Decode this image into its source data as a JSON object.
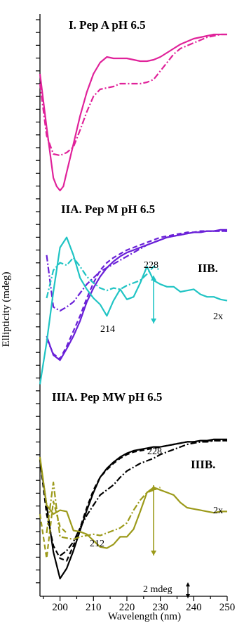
{
  "chart_data": {
    "type": "line",
    "xlabel": "Wavelength (nm)",
    "ylabel": "Ellipticity (mdeg)",
    "xlim": [
      194,
      250
    ],
    "x_ticks": [
      200,
      210,
      220,
      230,
      240,
      250
    ],
    "scale_bar_label": "2 mdeg",
    "legend": "none",
    "grid": false,
    "colors": {
      "magenta": "#e0229a",
      "purple": "#6a20d8",
      "cyan": "#20c4c4",
      "black": "#000000",
      "olive": "#9c9a1a"
    },
    "panels": [
      {
        "title": "I. Pep A pH 6.5",
        "series": [
          {
            "style": "solid",
            "color": "#e0229a",
            "x": [
              194,
              196,
              198,
              199,
              200,
              201,
              202,
              204,
              206,
              208,
              210,
              212,
              214,
              216,
              218,
              220,
              222,
              224,
              226,
              228,
              230,
              232,
              234,
              236,
              238,
              240,
              242,
              244,
              246,
              248,
              250
            ],
            "y": [
              0.4,
              -3.4,
              -7.0,
              -7.6,
              -7.9,
              -7.6,
              -6.6,
              -4.6,
              -2.6,
              -0.9,
              0.4,
              1.2,
              1.6,
              1.5,
              1.5,
              1.5,
              1.4,
              1.3,
              1.3,
              1.4,
              1.6,
              1.9,
              2.2,
              2.5,
              2.7,
              2.9,
              3.0,
              3.1,
              3.2,
              3.2,
              3.2
            ]
          },
          {
            "style": "dashdot",
            "color": "#e0229a",
            "x": [
              194,
              196,
              198,
              200,
              202,
              204,
              206,
              208,
              210,
              212,
              214,
              216,
              218,
              220,
              222,
              224,
              226,
              228,
              230,
              232,
              234,
              236,
              238,
              240,
              242,
              244,
              246,
              248,
              250
            ],
            "y": [
              -0.3,
              -4.0,
              -5.3,
              -5.4,
              -5.2,
              -4.8,
              -3.6,
              -2.3,
              -1.2,
              -0.7,
              -0.6,
              -0.5,
              -0.3,
              -0.3,
              -0.3,
              -0.3,
              -0.2,
              0.0,
              0.6,
              1.2,
              1.8,
              2.2,
              2.4,
              2.6,
              2.8,
              3.0,
              3.1,
              3.2,
              3.2
            ]
          }
        ]
      },
      {
        "title": "IIA. Pep M pH 6.5",
        "side_label": "IIB.",
        "series": [
          {
            "style": "solid",
            "color": "#6a20d8",
            "x": [
              196,
              198,
              200,
              202,
              204,
              206,
              208,
              210,
              212,
              214,
              216,
              218,
              220,
              222,
              224,
              226,
              228,
              230,
              232,
              234,
              236,
              238,
              240,
              242,
              244,
              246,
              248,
              250
            ],
            "y": [
              -5.0,
              -6.5,
              -6.9,
              -6.0,
              -5.0,
              -3.8,
              -2.3,
              -1.2,
              -0.3,
              0.4,
              0.9,
              1.3,
              1.6,
              1.8,
              2.0,
              2.2,
              2.4,
              2.6,
              2.8,
              2.9,
              3.0,
              3.1,
              3.2,
              3.2,
              3.3,
              3.3,
              3.4,
              3.4
            ]
          },
          {
            "style": "dashed",
            "color": "#6a20d8",
            "x": [
              196,
              198,
              200,
              202,
              204,
              206,
              208,
              210,
              212,
              214,
              216,
              218,
              220,
              222,
              224,
              226,
              228,
              230,
              232,
              234,
              236,
              238,
              240,
              242,
              244,
              246,
              248,
              250
            ],
            "y": [
              -5.2,
              -6.4,
              -6.8,
              -5.8,
              -4.6,
              -3.4,
              -2.0,
              -0.8,
              0.2,
              0.8,
              1.2,
              1.5,
              1.8,
              2.0,
              2.2,
              2.4,
              2.6,
              2.8,
              2.9,
              3.0,
              3.1,
              3.2,
              3.2,
              3.3,
              3.3,
              3.3,
              3.3,
              3.3
            ]
          },
          {
            "style": "dashdot",
            "color": "#6a20d8",
            "x": [
              196,
              198,
              200,
              202,
              204,
              206,
              208,
              210,
              212,
              214,
              216,
              218,
              220,
              222,
              224,
              226,
              228,
              230,
              232,
              234,
              236,
              238,
              240,
              242,
              244,
              246,
              248,
              250
            ],
            "y": [
              1.4,
              -2.7,
              -3.0,
              -2.7,
              -2.3,
              -1.6,
              -0.9,
              -0.4,
              0.1,
              0.4,
              0.7,
              1.0,
              1.3,
              1.6,
              1.9,
              2.2,
              2.4,
              2.6,
              2.8,
              2.9,
              3.0,
              3.1,
              3.2,
              3.2,
              3.3,
              3.3,
              3.3,
              3.3
            ]
          },
          {
            "style": "solid",
            "color": "#20c4c4",
            "x": [
              194,
              196,
              198,
              200,
              202,
              204,
              206,
              208,
              210,
              212,
              214,
              216,
              218,
              220,
              222,
              224,
              226,
              228,
              230,
              232,
              234,
              236,
              238,
              240,
              242,
              244,
              246,
              248,
              250
            ],
            "y": [
              -8.8,
              -5.5,
              -1.5,
              2.0,
              2.8,
              1.4,
              -0.4,
              -1.3,
              -2.0,
              -2.5,
              -3.4,
              -2.2,
              -1.3,
              -2.1,
              -1.9,
              -0.8,
              0.5,
              -0.6,
              -0.9,
              -1.1,
              -1.1,
              -1.5,
              -1.4,
              -1.3,
              -1.7,
              -1.9,
              -1.9,
              -2.1,
              -2.2
            ]
          },
          {
            "style": "dashdot",
            "color": "#20c4c4",
            "x": [
              196,
              198,
              200,
              202,
              204,
              206,
              208,
              210,
              212,
              214,
              216,
              218,
              220,
              222,
              224,
              226,
              228,
              230
            ],
            "y": [
              -2.0,
              0.2,
              0.8,
              0.6,
              1.2,
              0.5,
              -0.3,
              -0.8,
              -1.2,
              -1.4,
              -1.2,
              -1.3,
              -1.0,
              -0.8,
              -0.6,
              -0.1,
              0.5,
              0.2
            ]
          }
        ],
        "annotations": [
          {
            "text": "228",
            "x": 228
          },
          {
            "text": "214",
            "x": 214
          },
          {
            "text": "2x"
          }
        ]
      },
      {
        "title": "IIIA. Pep MW pH 6.5",
        "side_label": "IIIB.",
        "series": [
          {
            "style": "solid",
            "color": "#000000",
            "x": [
              194,
              196,
              198,
              200,
              202,
              204,
              206,
              208,
              210,
              212,
              214,
              216,
              218,
              220,
              222,
              224,
              226,
              228,
              230,
              232,
              234,
              236,
              238,
              240,
              242,
              244,
              246,
              248,
              250
            ],
            "y": [
              1.8,
              -1.8,
              -5.5,
              -7.6,
              -6.8,
              -5.4,
              -3.8,
              -2.2,
              -0.8,
              0.4,
              1.1,
              1.6,
              2.0,
              2.3,
              2.5,
              2.6,
              2.7,
              2.8,
              2.8,
              2.9,
              3.0,
              3.1,
              3.2,
              3.2,
              3.3,
              3.3,
              3.4,
              3.4,
              3.4
            ]
          },
          {
            "style": "dashed",
            "color": "#000000",
            "x": [
              194,
              196,
              198,
              200,
              202,
              204,
              206,
              208,
              210,
              212,
              214,
              216,
              218,
              220,
              222,
              224,
              226,
              228,
              230,
              232,
              234,
              236,
              238,
              240,
              242,
              244,
              246,
              248,
              250
            ],
            "y": [
              1.8,
              -2.5,
              -5.0,
              -6.0,
              -6.2,
              -5.0,
              -3.6,
              -2.0,
              -0.6,
              0.4,
              1.0,
              1.5,
              1.9,
              2.2,
              2.4,
              2.5,
              2.6,
              2.7,
              2.8,
              2.9,
              3.0,
              3.1,
              3.2,
              3.2,
              3.3,
              3.3,
              3.3,
              3.3,
              3.3
            ]
          },
          {
            "style": "dashdot",
            "color": "#000000",
            "x": [
              200,
              202,
              204,
              206,
              208,
              210,
              212,
              214,
              216,
              218,
              220,
              222,
              224,
              226,
              228,
              230,
              232,
              234,
              236,
              238,
              240,
              242,
              244,
              246,
              248,
              250
            ],
            "y": [
              -5.8,
              -5.4,
              -4.7,
              -3.6,
              -2.6,
              -1.8,
              -1.0,
              -0.6,
              -0.2,
              0.4,
              0.9,
              1.2,
              1.5,
              1.7,
              1.9,
              2.2,
              2.4,
              2.6,
              2.8,
              3.0,
              3.1,
              3.2,
              3.2,
              3.3,
              3.3,
              3.3
            ]
          },
          {
            "style": "solid",
            "color": "#9c9a1a",
            "x": [
              194,
              196,
              198,
              200,
              202,
              204,
              206,
              208,
              210,
              212,
              214,
              216,
              218,
              220,
              222,
              224,
              226,
              228,
              230,
              232,
              234,
              236,
              238,
              240,
              242,
              244,
              246,
              248,
              250
            ],
            "y": [
              2.0,
              -1.8,
              -2.5,
              -2.2,
              -2.3,
              -3.8,
              -3.9,
              -4.1,
              -4.6,
              -5.1,
              -5.2,
              -4.9,
              -4.3,
              -4.3,
              -3.7,
              -2.3,
              -0.8,
              -0.4,
              -0.6,
              -0.8,
              -1.0,
              -1.6,
              -2.0,
              -2.1,
              -2.2,
              -2.3,
              -2.4,
              -2.3,
              -2.3
            ]
          },
          {
            "style": "dashdot",
            "color": "#9c9a1a",
            "x": [
              196,
              198,
              200,
              202,
              204,
              206,
              208,
              210,
              212,
              214,
              216,
              218,
              220,
              222,
              224,
              226,
              228,
              230
            ],
            "y": [
              -4.0,
              0.0,
              -4.3,
              -4.4,
              -4.5,
              -4.3,
              -4.2,
              -4.1,
              -4.2,
              -4.0,
              -3.8,
              -3.6,
              -3.2,
              -2.2,
              -1.4,
              -0.8,
              -0.6,
              -0.4
            ]
          },
          {
            "style": "dashed",
            "color": "#9c9a1a",
            "x": [
              194,
              196,
              198,
              200,
              202
            ],
            "y": [
              -2.5,
              -6.0,
              -1.5,
              -3.5,
              -4.0
            ]
          }
        ],
        "annotations": [
          {
            "text": "228",
            "x": 228
          },
          {
            "text": "212",
            "x": 212
          },
          {
            "text": "2x"
          }
        ]
      }
    ]
  }
}
